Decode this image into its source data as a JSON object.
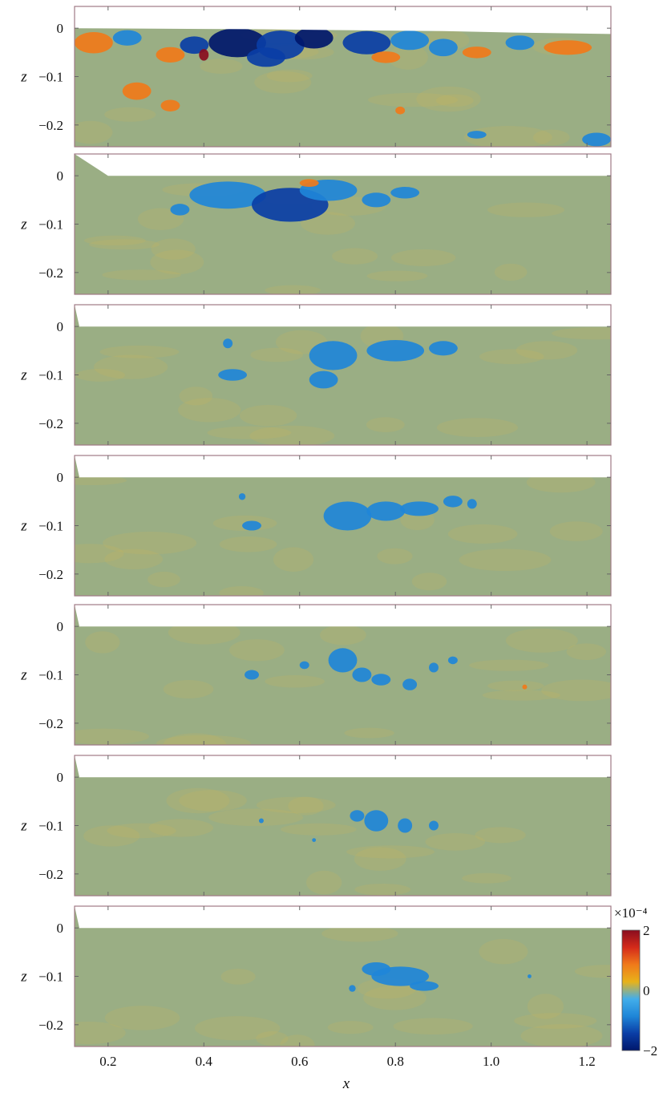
{
  "chart_data": {
    "type": "heatmap",
    "layout": "7 vertically stacked panels sharing the x axis",
    "xlabel": "x",
    "ylabel": "z",
    "xlim": [
      0.13,
      1.25
    ],
    "ylim": [
      -0.245,
      0.045
    ],
    "x_ticks": [
      {
        "value": 0.2,
        "label": "0.2"
      },
      {
        "value": 0.4,
        "label": "0.4"
      },
      {
        "value": 0.6,
        "label": "0.6"
      },
      {
        "value": 0.8,
        "label": "0.8"
      },
      {
        "value": 1.0,
        "label": "1.0"
      },
      {
        "value": 1.2,
        "label": "1.2"
      }
    ],
    "y_ticks": [
      {
        "value": 0,
        "label": "0"
      },
      {
        "value": -0.1,
        "label": "−0.1"
      },
      {
        "value": -0.2,
        "label": "−0.2"
      }
    ],
    "background_color": "#9aae84",
    "colorbar": {
      "exponent_label": "×10⁻⁴",
      "range": [
        -2,
        2
      ],
      "tick_labels": [
        {
          "value": 2,
          "label": "2"
        },
        {
          "value": 0,
          "label": "0"
        },
        {
          "value": -2,
          "label": "−2"
        }
      ],
      "colors": [
        "#00176b",
        "#0a3ea6",
        "#1f86d8",
        "#43aeea",
        "#e8b21a",
        "#f07a1a",
        "#d42a1a",
        "#8a0d1f"
      ]
    },
    "panels": [
      {
        "index": 1,
        "surface": [
          [
            0.13,
            0.0
          ],
          [
            0.3,
            -0.001
          ],
          [
            0.5,
            -0.002
          ],
          [
            0.7,
            -0.004
          ],
          [
            0.9,
            -0.006
          ],
          [
            1.05,
            -0.009
          ],
          [
            1.25,
            -0.012
          ]
        ],
        "patches": [
          {
            "x": 0.17,
            "z": -0.03,
            "rx": 0.04,
            "rz": 0.022,
            "v": 1.0
          },
          {
            "x": 0.24,
            "z": -0.02,
            "rx": 0.03,
            "rz": 0.016,
            "v": -0.9
          },
          {
            "x": 0.33,
            "z": -0.055,
            "rx": 0.03,
            "rz": 0.016,
            "v": 0.8
          },
          {
            "x": 0.38,
            "z": -0.035,
            "rx": 0.03,
            "rz": 0.018,
            "v": -1.2
          },
          {
            "x": 0.4,
            "z": -0.055,
            "rx": 0.01,
            "rz": 0.012,
            "v": 1.9
          },
          {
            "x": 0.47,
            "z": -0.03,
            "rx": 0.06,
            "rz": 0.03,
            "v": -1.9
          },
          {
            "x": 0.56,
            "z": -0.035,
            "rx": 0.05,
            "rz": 0.03,
            "v": -1.6
          },
          {
            "x": 0.63,
            "z": -0.02,
            "rx": 0.04,
            "rz": 0.022,
            "v": -2.0
          },
          {
            "x": 0.53,
            "z": -0.06,
            "rx": 0.04,
            "rz": 0.02,
            "v": -1.3
          },
          {
            "x": 0.74,
            "z": -0.03,
            "rx": 0.05,
            "rz": 0.024,
            "v": -1.5
          },
          {
            "x": 0.83,
            "z": -0.025,
            "rx": 0.04,
            "rz": 0.02,
            "v": -1.1
          },
          {
            "x": 0.78,
            "z": -0.06,
            "rx": 0.03,
            "rz": 0.012,
            "v": 0.7
          },
          {
            "x": 0.9,
            "z": -0.04,
            "rx": 0.03,
            "rz": 0.018,
            "v": -0.9
          },
          {
            "x": 0.97,
            "z": -0.05,
            "rx": 0.03,
            "rz": 0.012,
            "v": 0.8
          },
          {
            "x": 1.06,
            "z": -0.03,
            "rx": 0.03,
            "rz": 0.015,
            "v": -0.8
          },
          {
            "x": 1.16,
            "z": -0.04,
            "rx": 0.05,
            "rz": 0.015,
            "v": 0.6
          },
          {
            "x": 0.26,
            "z": -0.13,
            "rx": 0.03,
            "rz": 0.018,
            "v": 0.9
          },
          {
            "x": 0.33,
            "z": -0.16,
            "rx": 0.02,
            "rz": 0.012,
            "v": 0.8
          },
          {
            "x": 1.22,
            "z": -0.23,
            "rx": 0.03,
            "rz": 0.014,
            "v": -1.0
          },
          {
            "x": 0.97,
            "z": -0.22,
            "rx": 0.02,
            "rz": 0.008,
            "v": -0.8
          },
          {
            "x": 0.81,
            "z": -0.17,
            "rx": 0.01,
            "rz": 0.008,
            "v": 0.7
          }
        ]
      },
      {
        "index": 2,
        "surface": [
          [
            0.13,
            0.045
          ],
          [
            0.2,
            0.0
          ],
          [
            1.25,
            0.0
          ]
        ],
        "patches": [
          {
            "x": 0.45,
            "z": -0.04,
            "rx": 0.08,
            "rz": 0.028,
            "v": -1.0
          },
          {
            "x": 0.58,
            "z": -0.06,
            "rx": 0.08,
            "rz": 0.035,
            "v": -1.2
          },
          {
            "x": 0.66,
            "z": -0.03,
            "rx": 0.06,
            "rz": 0.022,
            "v": -1.0
          },
          {
            "x": 0.35,
            "z": -0.07,
            "rx": 0.02,
            "rz": 0.012,
            "v": -0.8
          },
          {
            "x": 0.76,
            "z": -0.05,
            "rx": 0.03,
            "rz": 0.015,
            "v": -0.8
          },
          {
            "x": 0.82,
            "z": -0.035,
            "rx": 0.03,
            "rz": 0.012,
            "v": -0.7
          },
          {
            "x": 0.62,
            "z": -0.015,
            "rx": 0.02,
            "rz": 0.008,
            "v": 0.7
          }
        ]
      },
      {
        "index": 3,
        "surface": [
          [
            0.13,
            0.045
          ],
          [
            0.14,
            0.0
          ],
          [
            1.25,
            0.0
          ]
        ],
        "patches": [
          {
            "x": 0.67,
            "z": -0.06,
            "rx": 0.05,
            "rz": 0.03,
            "v": -0.9
          },
          {
            "x": 0.8,
            "z": -0.05,
            "rx": 0.06,
            "rz": 0.022,
            "v": -0.9
          },
          {
            "x": 0.9,
            "z": -0.045,
            "rx": 0.03,
            "rz": 0.015,
            "v": -0.8
          },
          {
            "x": 0.65,
            "z": -0.11,
            "rx": 0.03,
            "rz": 0.018,
            "v": -0.8
          },
          {
            "x": 0.46,
            "z": -0.1,
            "rx": 0.03,
            "rz": 0.012,
            "v": -0.8
          },
          {
            "x": 0.45,
            "z": -0.035,
            "rx": 0.01,
            "rz": 0.01,
            "v": -0.7
          }
        ]
      },
      {
        "index": 4,
        "surface": [
          [
            0.13,
            0.045
          ],
          [
            0.14,
            0.0
          ],
          [
            1.25,
            0.0
          ]
        ],
        "patches": [
          {
            "x": 0.7,
            "z": -0.08,
            "rx": 0.05,
            "rz": 0.03,
            "v": -0.9
          },
          {
            "x": 0.78,
            "z": -0.07,
            "rx": 0.04,
            "rz": 0.02,
            "v": -0.8
          },
          {
            "x": 0.85,
            "z": -0.065,
            "rx": 0.04,
            "rz": 0.015,
            "v": -0.8
          },
          {
            "x": 0.92,
            "z": -0.05,
            "rx": 0.02,
            "rz": 0.012,
            "v": -0.8
          },
          {
            "x": 0.96,
            "z": -0.055,
            "rx": 0.01,
            "rz": 0.01,
            "v": -0.7
          },
          {
            "x": 0.5,
            "z": -0.1,
            "rx": 0.02,
            "rz": 0.01,
            "v": -0.8
          },
          {
            "x": 0.48,
            "z": -0.04,
            "rx": 0.007,
            "rz": 0.007,
            "v": -0.7
          }
        ]
      },
      {
        "index": 5,
        "surface": [
          [
            0.13,
            0.045
          ],
          [
            0.14,
            0.0
          ],
          [
            1.25,
            0.0
          ]
        ],
        "patches": [
          {
            "x": 0.69,
            "z": -0.07,
            "rx": 0.03,
            "rz": 0.025,
            "v": -0.8
          },
          {
            "x": 0.73,
            "z": -0.1,
            "rx": 0.02,
            "rz": 0.015,
            "v": -0.8
          },
          {
            "x": 0.77,
            "z": -0.11,
            "rx": 0.02,
            "rz": 0.012,
            "v": -0.8
          },
          {
            "x": 0.83,
            "z": -0.12,
            "rx": 0.015,
            "rz": 0.012,
            "v": -0.8
          },
          {
            "x": 0.88,
            "z": -0.085,
            "rx": 0.01,
            "rz": 0.01,
            "v": -0.8
          },
          {
            "x": 0.5,
            "z": -0.1,
            "rx": 0.015,
            "rz": 0.01,
            "v": -0.8
          },
          {
            "x": 0.61,
            "z": -0.08,
            "rx": 0.01,
            "rz": 0.008,
            "v": -0.7
          },
          {
            "x": 0.92,
            "z": -0.07,
            "rx": 0.01,
            "rz": 0.008,
            "v": -0.7
          },
          {
            "x": 1.07,
            "z": -0.125,
            "rx": 0.005,
            "rz": 0.005,
            "v": 0.8
          }
        ]
      },
      {
        "index": 6,
        "surface": [
          [
            0.13,
            0.045
          ],
          [
            0.14,
            0.0
          ],
          [
            1.25,
            0.0
          ]
        ],
        "patches": [
          {
            "x": 0.76,
            "z": -0.09,
            "rx": 0.025,
            "rz": 0.022,
            "v": -0.8
          },
          {
            "x": 0.72,
            "z": -0.08,
            "rx": 0.015,
            "rz": 0.012,
            "v": -0.8
          },
          {
            "x": 0.82,
            "z": -0.1,
            "rx": 0.015,
            "rz": 0.015,
            "v": -0.8
          },
          {
            "x": 0.88,
            "z": -0.1,
            "rx": 0.01,
            "rz": 0.01,
            "v": -0.7
          },
          {
            "x": 0.52,
            "z": -0.09,
            "rx": 0.005,
            "rz": 0.005,
            "v": -0.7
          },
          {
            "x": 0.63,
            "z": -0.13,
            "rx": 0.004,
            "rz": 0.004,
            "v": -0.7
          }
        ]
      },
      {
        "index": 7,
        "surface": [
          [
            0.13,
            0.045
          ],
          [
            0.14,
            0.0
          ],
          [
            1.25,
            0.0
          ]
        ],
        "patches": [
          {
            "x": 0.81,
            "z": -0.1,
            "rx": 0.06,
            "rz": 0.02,
            "v": -0.9
          },
          {
            "x": 0.76,
            "z": -0.085,
            "rx": 0.03,
            "rz": 0.014,
            "v": -0.8
          },
          {
            "x": 0.86,
            "z": -0.12,
            "rx": 0.03,
            "rz": 0.01,
            "v": -0.8
          },
          {
            "x": 0.71,
            "z": -0.125,
            "rx": 0.007,
            "rz": 0.007,
            "v": -0.7
          },
          {
            "x": 1.08,
            "z": -0.1,
            "rx": 0.004,
            "rz": 0.004,
            "v": -0.7
          }
        ]
      }
    ]
  }
}
